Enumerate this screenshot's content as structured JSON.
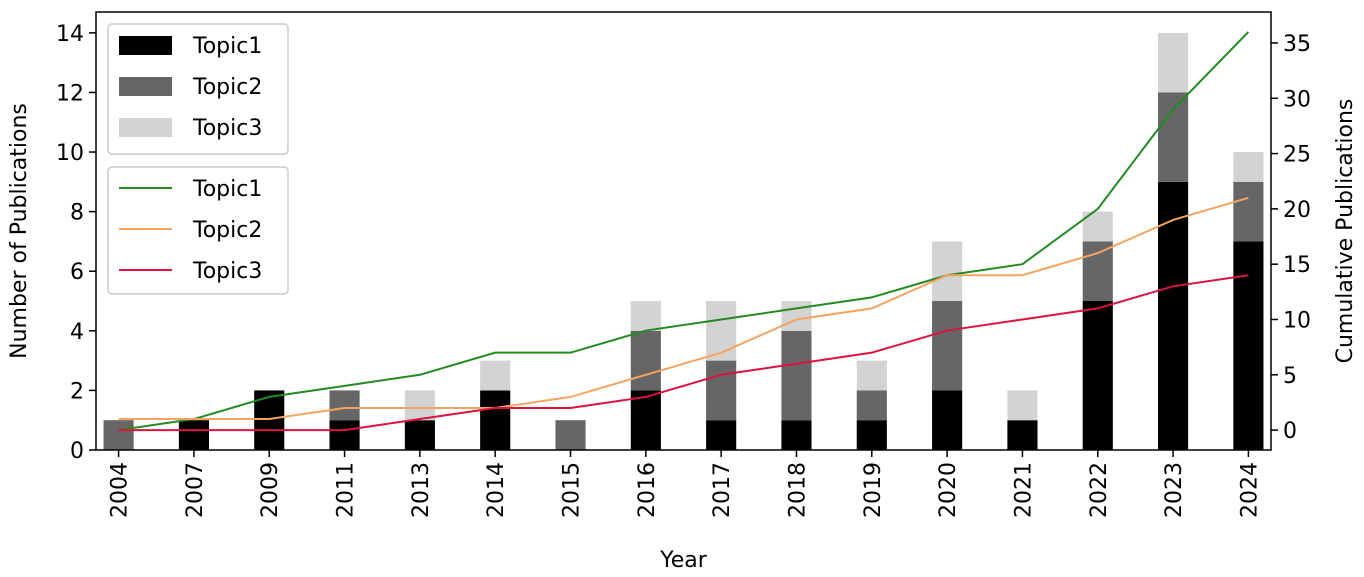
{
  "chart_data": {
    "type": "bar",
    "stacked": true,
    "categories": [
      "2004",
      "2007",
      "2009",
      "2011",
      "2013",
      "2014",
      "2015",
      "2016",
      "2017",
      "2018",
      "2019",
      "2020",
      "2021",
      "2022",
      "2023",
      "2024"
    ],
    "series": [
      {
        "name": "Topic1",
        "type": "bar",
        "color": "#000000",
        "values": [
          0,
          1,
          2,
          1,
          1,
          2,
          0,
          2,
          1,
          1,
          1,
          2,
          1,
          5,
          9,
          7
        ]
      },
      {
        "name": "Topic2",
        "type": "bar",
        "color": "#666666",
        "values": [
          1,
          0,
          0,
          1,
          0,
          0,
          1,
          2,
          2,
          3,
          1,
          3,
          0,
          2,
          3,
          2
        ]
      },
      {
        "name": "Topic3",
        "type": "bar",
        "color": "#d3d3d3",
        "values": [
          0,
          0,
          0,
          0,
          1,
          1,
          0,
          1,
          2,
          1,
          1,
          2,
          1,
          1,
          2,
          1
        ]
      }
    ],
    "cumulative_series": [
      {
        "name": "Topic1",
        "type": "line",
        "axis": "right",
        "color": "#228b22",
        "values": [
          0,
          1,
          3,
          4,
          5,
          7,
          7,
          9,
          10,
          11,
          12,
          14,
          15,
          20,
          29,
          36
        ]
      },
      {
        "name": "Topic2",
        "type": "line",
        "axis": "right",
        "color": "#f4a460",
        "values": [
          1,
          1,
          1,
          2,
          2,
          2,
          3,
          5,
          7,
          10,
          11,
          14,
          14,
          16,
          19,
          21
        ]
      },
      {
        "name": "Topic3",
        "type": "line",
        "axis": "right",
        "color": "#dc143c",
        "values": [
          0,
          0,
          0,
          0,
          1,
          2,
          2,
          3,
          5,
          6,
          7,
          9,
          10,
          11,
          13,
          14
        ]
      }
    ],
    "xlabel": "Year",
    "ylabel": "Number of Publications",
    "y2label": "Cumulative Publications",
    "ylim": [
      0,
      14.7
    ],
    "y2lim": [
      -1.8,
      37.8
    ],
    "yticks": [
      0,
      2,
      4,
      6,
      8,
      10,
      12,
      14
    ],
    "y2ticks": [
      0,
      5,
      10,
      15,
      20,
      25,
      30,
      35
    ],
    "grid": false,
    "legend_placement": "upper-left"
  }
}
